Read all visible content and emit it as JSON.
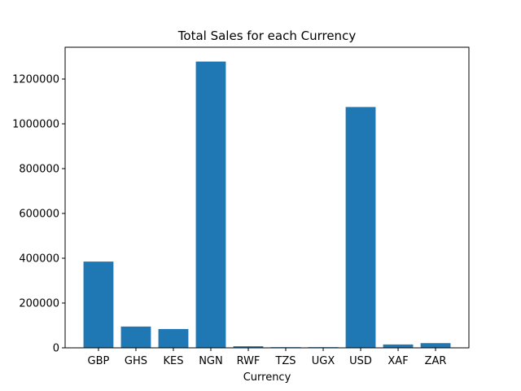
{
  "chart_data": {
    "type": "bar",
    "title": "Total Sales for each Currency",
    "xlabel": "Currency",
    "ylabel": "",
    "categories": [
      "GBP",
      "GHS",
      "KES",
      "NGN",
      "RWF",
      "TZS",
      "UGX",
      "USD",
      "XAF",
      "ZAR"
    ],
    "values": [
      385000,
      95000,
      84000,
      1278000,
      7000,
      3000,
      3000,
      1075000,
      15000,
      21000
    ],
    "ylim": [
      0,
      1341900
    ],
    "yticks": [
      0,
      200000,
      400000,
      600000,
      800000,
      1000000,
      1200000
    ],
    "ytick_labels": [
      "0",
      "200000",
      "400000",
      "600000",
      "800000",
      "1000000",
      "1200000"
    ],
    "grid": false,
    "legend": "none",
    "bar_color": "#1f77b4"
  }
}
